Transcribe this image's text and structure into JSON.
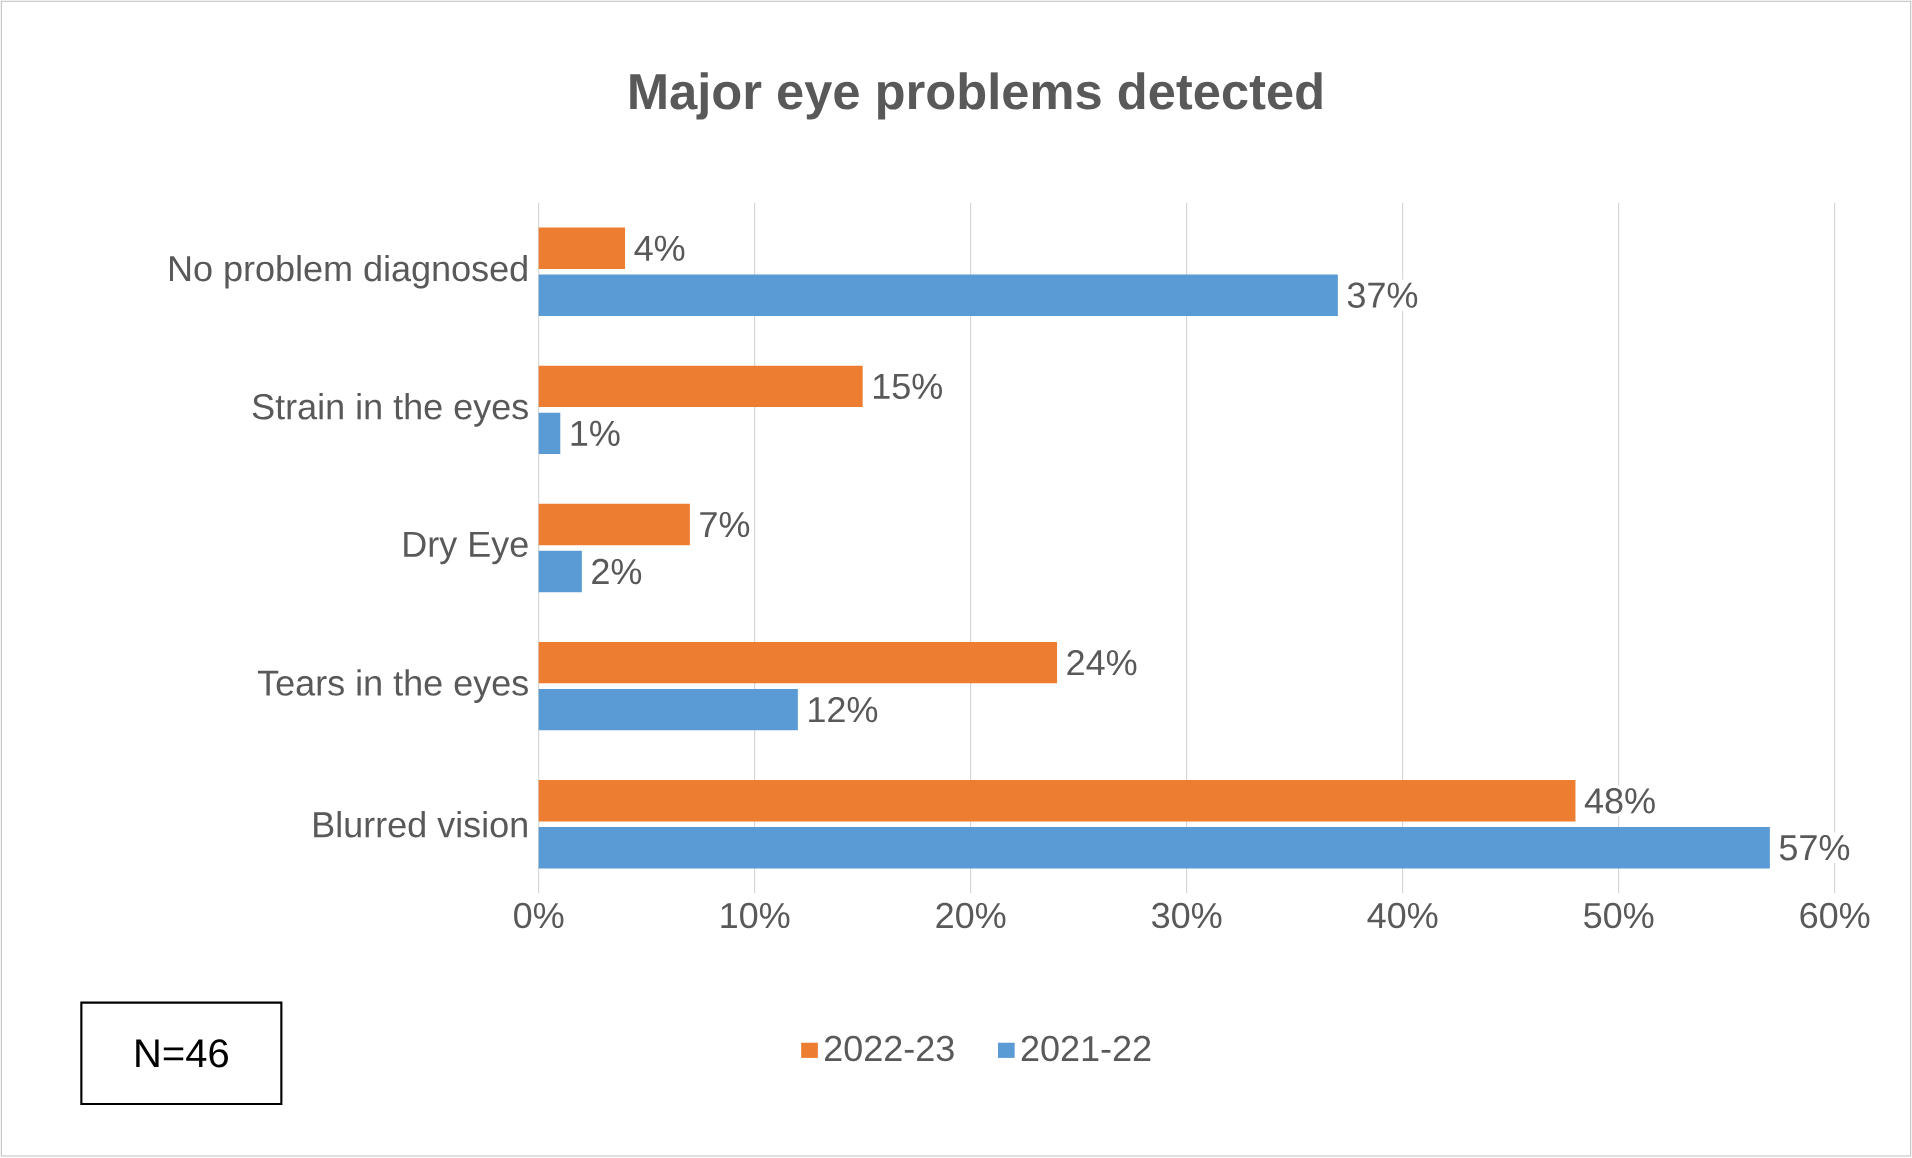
{
  "chart_data": {
    "type": "bar",
    "orientation": "horizontal",
    "title": "Major eye problems detected",
    "categories": [
      "No problem diagnosed",
      "Strain in the eyes",
      "Dry Eye",
      "Tears in the eyes",
      "Blurred vision"
    ],
    "series": [
      {
        "name": "2022-23",
        "color": "#ed7d31",
        "values": [
          4,
          15,
          7,
          24,
          48
        ],
        "value_labels": [
          "4%",
          "15%",
          "7%",
          "24%",
          "48%"
        ]
      },
      {
        "name": "2021-22",
        "color": "#5b9bd5",
        "values": [
          37,
          1,
          2,
          12,
          57
        ],
        "value_labels": [
          "37%",
          "1%",
          "2%",
          "12%",
          "57%"
        ]
      }
    ],
    "xlim": [
      0,
      60
    ],
    "xticks": [
      {
        "value": 0,
        "label": "0%"
      },
      {
        "value": 10,
        "label": "10%"
      },
      {
        "value": 20,
        "label": "20%"
      },
      {
        "value": 30,
        "label": "30%"
      },
      {
        "value": 40,
        "label": "40%"
      },
      {
        "value": 50,
        "label": "50%"
      },
      {
        "value": 60,
        "label": "60%"
      }
    ],
    "grid": "x",
    "legend": "bottom",
    "annotations": [
      "N=46"
    ]
  }
}
